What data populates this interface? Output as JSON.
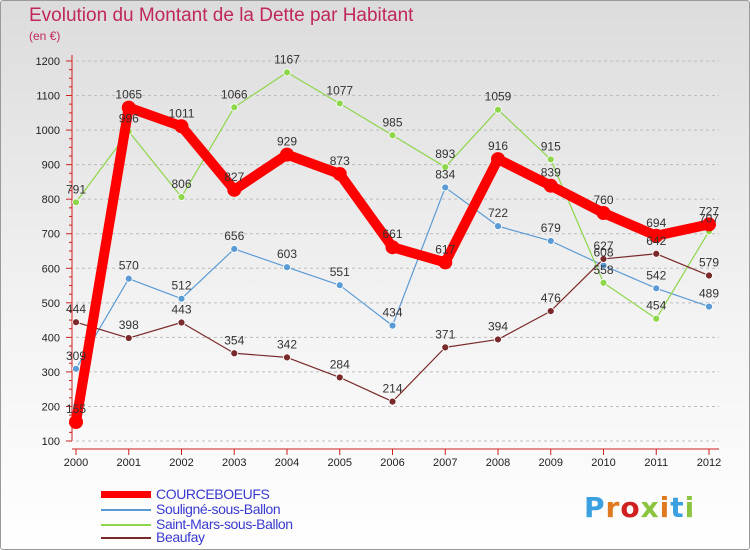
{
  "title": "Evolution du Montant de la Dette par Habitant",
  "subtitle": "(en €)",
  "brand": "Proxiti",
  "colors": {
    "title": "#c0285a",
    "legend_text": "#3a3ad0",
    "tick_label": "#222222"
  },
  "chart_data": {
    "type": "line",
    "x": [
      "2000",
      "2001",
      "2002",
      "2003",
      "2004",
      "2005",
      "2006",
      "2007",
      "2008",
      "2009",
      "2010",
      "2011",
      "2012"
    ],
    "ylim": [
      100,
      1200
    ],
    "yticks": [
      100,
      200,
      300,
      400,
      500,
      600,
      700,
      800,
      900,
      1000,
      1100,
      1200
    ],
    "grid": "horizontal dashed",
    "legend_position": "bottom-left",
    "series": [
      {
        "name": "COURCEBOEUFS",
        "color": "#ff0000",
        "values": [
          155,
          1065,
          1011,
          827,
          929,
          873,
          661,
          617,
          916,
          839,
          760,
          694,
          727
        ]
      },
      {
        "name": "Souligné-sous-Ballon",
        "color": "#5b9bd5",
        "values": [
          309,
          570,
          512,
          656,
          603,
          551,
          434,
          834,
          722,
          679,
          608,
          542,
          489
        ]
      },
      {
        "name": "Saint-Mars-sous-Ballon",
        "color": "#8ed64a",
        "values": [
          791,
          996,
          806,
          1066,
          1167,
          1077,
          985,
          893,
          1059,
          915,
          558,
          454,
          707
        ]
      },
      {
        "name": "Beaufay",
        "color": "#7a2a2a",
        "values": [
          444,
          398,
          443,
          354,
          342,
          284,
          214,
          371,
          394,
          476,
          627,
          642,
          579
        ]
      }
    ]
  }
}
